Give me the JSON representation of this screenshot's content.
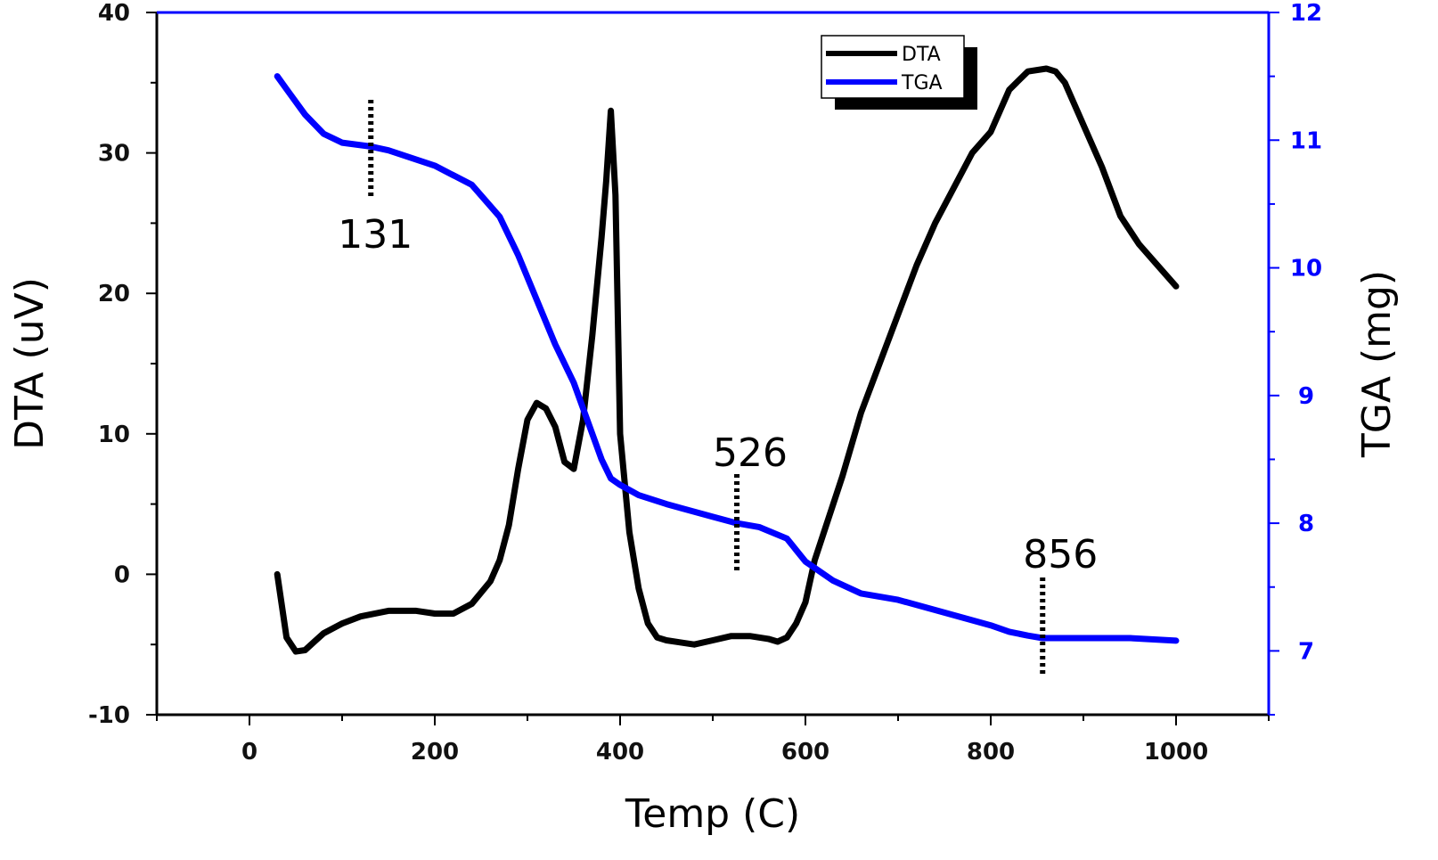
{
  "chart_data": {
    "type": "line",
    "title": "",
    "xlabel": "Temp (C)",
    "ylabel_left": "DTA (uV)",
    "ylabel_right": "TGA (mg)",
    "xlim": [
      -100,
      1100
    ],
    "ylim_left": [
      -10,
      40
    ],
    "ylim_right": [
      6.5,
      12
    ],
    "x_ticks": [
      "0",
      "200",
      "400",
      "600",
      "800",
      "1000"
    ],
    "y_left_ticks": [
      "-10",
      "0",
      "10",
      "20",
      "30",
      "40"
    ],
    "y_right_ticks": [
      "7",
      "8",
      "9",
      "10",
      "11",
      "12"
    ],
    "grid": false,
    "legend_position": "top-right",
    "colors": {
      "DTA": "#000000",
      "TGA": "#0000ff",
      "right_axis": "#0000ff"
    },
    "series": [
      {
        "name": "DTA",
        "axis": "left",
        "x": [
          30,
          40,
          50,
          60,
          70,
          80,
          100,
          120,
          150,
          180,
          200,
          220,
          240,
          260,
          270,
          280,
          290,
          300,
          310,
          320,
          330,
          340,
          350,
          360,
          370,
          380,
          385,
          390,
          395,
          400,
          410,
          420,
          430,
          440,
          450,
          480,
          500,
          520,
          540,
          560,
          570,
          580,
          590,
          600,
          610,
          620,
          640,
          660,
          680,
          700,
          720,
          740,
          760,
          780,
          800,
          820,
          840,
          860,
          870,
          880,
          900,
          920,
          940,
          960,
          980,
          1000
        ],
        "y": [
          0,
          -4.5,
          -5.5,
          -5.4,
          -4.8,
          -4.2,
          -3.5,
          -3,
          -2.6,
          -2.6,
          -2.8,
          -2.8,
          -2.1,
          -0.5,
          1,
          3.5,
          7.5,
          11,
          12.2,
          11.8,
          10.5,
          8,
          7.5,
          11,
          17,
          24,
          28,
          33,
          27,
          10,
          3,
          -1,
          -3.5,
          -4.5,
          -4.7,
          -5,
          -4.7,
          -4.4,
          -4.4,
          -4.6,
          -4.8,
          -4.5,
          -3.5,
          -2,
          1,
          3,
          7,
          11.5,
          15,
          18.5,
          22,
          25,
          27.5,
          30,
          31.5,
          34.5,
          35.8,
          36,
          35.8,
          35,
          32,
          29,
          25.5,
          23.5,
          22,
          20.5
        ]
      },
      {
        "name": "TGA",
        "axis": "right",
        "x": [
          30,
          40,
          60,
          80,
          100,
          131,
          150,
          200,
          240,
          270,
          290,
          310,
          330,
          350,
          370,
          380,
          390,
          400,
          420,
          450,
          500,
          526,
          550,
          580,
          600,
          630,
          660,
          700,
          750,
          800,
          820,
          840,
          856,
          900,
          950,
          1000
        ],
        "y": [
          11.5,
          11.4,
          11.2,
          11.05,
          10.98,
          10.95,
          10.92,
          10.8,
          10.65,
          10.4,
          10.1,
          9.75,
          9.4,
          9.1,
          8.7,
          8.5,
          8.35,
          8.3,
          8.22,
          8.15,
          8.05,
          8.0,
          7.97,
          7.88,
          7.7,
          7.55,
          7.45,
          7.4,
          7.3,
          7.2,
          7.15,
          7.12,
          7.1,
          7.1,
          7.1,
          7.08
        ]
      }
    ],
    "annotations": [
      {
        "text": "131",
        "x": 131
      },
      {
        "text": "526",
        "x": 526
      },
      {
        "text": "856",
        "x": 856
      }
    ]
  }
}
